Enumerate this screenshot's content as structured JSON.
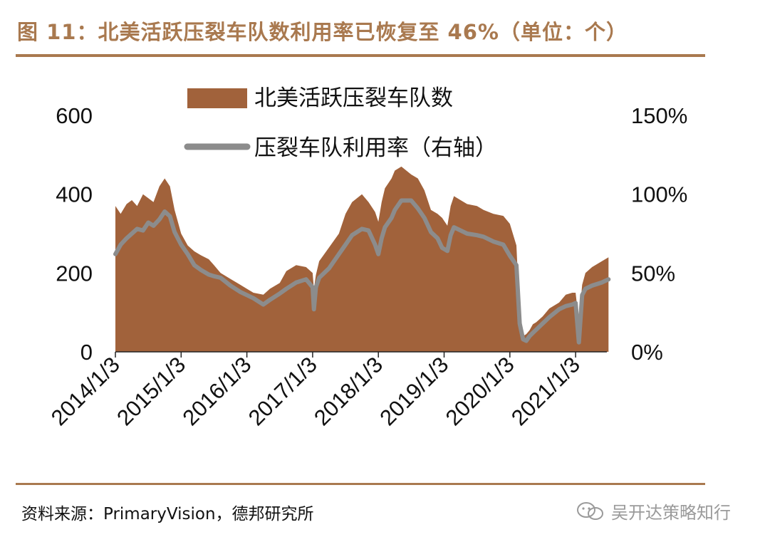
{
  "figure": {
    "title": "图 11：北美活跃压裂车队数利用率已恢复至 46%（单位：个）",
    "source": "资料来源：PrimaryVision，德邦研究所",
    "watermark": "吴开达策略知行"
  },
  "colors": {
    "title": "#a9794f",
    "area_fill": "#a1623b",
    "line": "#8c8c8c",
    "rule": "#a9794f"
  },
  "chart_data": {
    "type": "area",
    "x_tick_labels": [
      "2014/1/3",
      "2015/1/3",
      "2016/1/3",
      "2017/1/3",
      "2018/1/3",
      "2019/1/3",
      "2020/1/3",
      "2021/1/3"
    ],
    "y_left": {
      "ticks": [
        "600",
        "400",
        "200",
        "0"
      ],
      "ylim": [
        0,
        600
      ]
    },
    "y_right": {
      "ticks": [
        "150%",
        "100%",
        "50%",
        "0%"
      ],
      "ylim": [
        0,
        1.5
      ]
    },
    "legend_position": "top",
    "series": [
      {
        "name": "北美活跃压裂车队数",
        "type": "area",
        "axis": "left",
        "x": [
          2014.0,
          2014.08,
          2014.17,
          2014.25,
          2014.33,
          2014.42,
          2014.5,
          2014.58,
          2014.67,
          2014.75,
          2014.83,
          2014.9,
          2015.0,
          2015.1,
          2015.2,
          2015.3,
          2015.42,
          2015.5,
          2015.6,
          2015.75,
          2015.9,
          2016.0,
          2016.1,
          2016.25,
          2016.35,
          2016.5,
          2016.6,
          2016.75,
          2016.9,
          2017.0,
          2017.02,
          2017.05,
          2017.1,
          2017.25,
          2017.4,
          2017.5,
          2017.6,
          2017.75,
          2017.85,
          2017.95,
          2018.0,
          2018.05,
          2018.1,
          2018.2,
          2018.25,
          2018.35,
          2018.5,
          2018.6,
          2018.7,
          2018.8,
          2018.9,
          2018.97,
          2019.05,
          2019.1,
          2019.15,
          2019.25,
          2019.35,
          2019.5,
          2019.6,
          2019.75,
          2019.9,
          2020.0,
          2020.1,
          2020.15,
          2020.2,
          2020.25,
          2020.3,
          2020.35,
          2020.4,
          2020.5,
          2020.6,
          2020.75,
          2020.85,
          2020.95,
          2021.0,
          2021.05,
          2021.1,
          2021.15,
          2021.25,
          2021.4,
          2021.5
        ],
        "values": [
          370,
          350,
          375,
          385,
          370,
          400,
          390,
          380,
          420,
          440,
          420,
          360,
          300,
          270,
          255,
          245,
          235,
          220,
          200,
          185,
          170,
          160,
          150,
          145,
          160,
          175,
          205,
          220,
          215,
          200,
          160,
          195,
          230,
          265,
          300,
          350,
          380,
          400,
          380,
          355,
          330,
          380,
          415,
          440,
          460,
          470,
          450,
          440,
          410,
          360,
          350,
          340,
          320,
          370,
          395,
          385,
          375,
          370,
          360,
          350,
          345,
          325,
          270,
          90,
          40,
          45,
          55,
          70,
          75,
          90,
          110,
          125,
          145,
          150,
          150,
          75,
          170,
          200,
          215,
          230,
          240
        ]
      },
      {
        "name": "压裂车队利用率（右轴）",
        "type": "line",
        "axis": "right",
        "x": [
          2014.0,
          2014.08,
          2014.17,
          2014.25,
          2014.33,
          2014.42,
          2014.5,
          2014.58,
          2014.67,
          2014.75,
          2014.83,
          2014.9,
          2015.0,
          2015.1,
          2015.2,
          2015.3,
          2015.42,
          2015.5,
          2015.6,
          2015.75,
          2015.9,
          2016.0,
          2016.1,
          2016.25,
          2016.35,
          2016.5,
          2016.6,
          2016.75,
          2016.9,
          2017.0,
          2017.02,
          2017.05,
          2017.1,
          2017.25,
          2017.4,
          2017.5,
          2017.6,
          2017.75,
          2017.85,
          2017.95,
          2018.0,
          2018.05,
          2018.1,
          2018.2,
          2018.25,
          2018.35,
          2018.5,
          2018.6,
          2018.7,
          2018.8,
          2018.9,
          2018.97,
          2019.05,
          2019.1,
          2019.15,
          2019.25,
          2019.35,
          2019.5,
          2019.6,
          2019.75,
          2019.9,
          2020.0,
          2020.1,
          2020.15,
          2020.2,
          2020.25,
          2020.3,
          2020.35,
          2020.4,
          2020.5,
          2020.6,
          2020.75,
          2020.85,
          2020.95,
          2021.0,
          2021.05,
          2021.1,
          2021.15,
          2021.25,
          2021.4,
          2021.5
        ],
        "values": [
          0.62,
          0.68,
          0.72,
          0.75,
          0.78,
          0.77,
          0.82,
          0.8,
          0.84,
          0.89,
          0.86,
          0.76,
          0.68,
          0.62,
          0.55,
          0.52,
          0.49,
          0.48,
          0.47,
          0.42,
          0.38,
          0.36,
          0.34,
          0.3,
          0.33,
          0.37,
          0.4,
          0.44,
          0.46,
          0.41,
          0.27,
          0.41,
          0.47,
          0.53,
          0.62,
          0.68,
          0.74,
          0.78,
          0.77,
          0.68,
          0.62,
          0.72,
          0.79,
          0.85,
          0.9,
          0.96,
          0.96,
          0.91,
          0.85,
          0.76,
          0.72,
          0.66,
          0.64,
          0.74,
          0.79,
          0.77,
          0.75,
          0.74,
          0.73,
          0.7,
          0.68,
          0.61,
          0.55,
          0.18,
          0.08,
          0.07,
          0.1,
          0.12,
          0.14,
          0.18,
          0.22,
          0.27,
          0.29,
          0.3,
          0.31,
          0.06,
          0.36,
          0.4,
          0.42,
          0.44,
          0.46
        ]
      }
    ]
  }
}
